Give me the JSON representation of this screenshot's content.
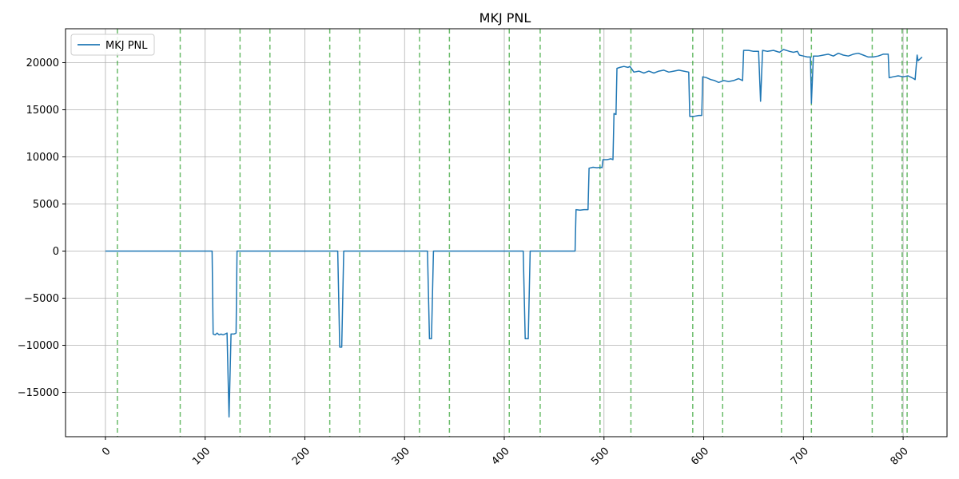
{
  "chart_data": {
    "type": "line",
    "title": "MKJ PNL",
    "xlabel": "",
    "ylabel": "",
    "xlim": [
      -40,
      844
    ],
    "ylim": [
      -19700,
      23600
    ],
    "xticks": [
      0,
      100,
      200,
      300,
      400,
      500,
      600,
      700,
      800
    ],
    "yticks": [
      -15000,
      -10000,
      -5000,
      0,
      5000,
      10000,
      15000,
      20000
    ],
    "grid": true,
    "legend": {
      "position": "top-left",
      "entries": [
        "MKJ PNL"
      ]
    },
    "series": [
      {
        "name": "MKJ PNL",
        "color": "#1f77b4",
        "points": [
          [
            0,
            0
          ],
          [
            12,
            0
          ],
          [
            50,
            0
          ],
          [
            100,
            0
          ],
          [
            107,
            0
          ],
          [
            108,
            -8800
          ],
          [
            110,
            -8900
          ],
          [
            112,
            -8700
          ],
          [
            114,
            -8900
          ],
          [
            116,
            -8800
          ],
          [
            118,
            -8900
          ],
          [
            120,
            -8800
          ],
          [
            122,
            -8700
          ],
          [
            124,
            -17600
          ],
          [
            126,
            -8800
          ],
          [
            129,
            -8800
          ],
          [
            131,
            -8700
          ],
          [
            132,
            0
          ],
          [
            160,
            0
          ],
          [
            200,
            0
          ],
          [
            233,
            0
          ],
          [
            235,
            -10200
          ],
          [
            237,
            -10200
          ],
          [
            239,
            0
          ],
          [
            280,
            0
          ],
          [
            323,
            0
          ],
          [
            325,
            -9300
          ],
          [
            327,
            -9300
          ],
          [
            329,
            0
          ],
          [
            370,
            0
          ],
          [
            419,
            0
          ],
          [
            421,
            -9300
          ],
          [
            424,
            -9300
          ],
          [
            426,
            0
          ],
          [
            460,
            0
          ],
          [
            471,
            0
          ],
          [
            472,
            4400
          ],
          [
            476,
            4350
          ],
          [
            480,
            4400
          ],
          [
            484,
            4400
          ],
          [
            485,
            8800
          ],
          [
            489,
            8900
          ],
          [
            493,
            8850
          ],
          [
            497,
            8900
          ],
          [
            498,
            8850
          ],
          [
            499,
            9700
          ],
          [
            503,
            9700
          ],
          [
            507,
            9800
          ],
          [
            509,
            9700
          ],
          [
            510,
            14600
          ],
          [
            512,
            14500
          ],
          [
            513,
            19400
          ],
          [
            516,
            19500
          ],
          [
            520,
            19600
          ],
          [
            524,
            19500
          ],
          [
            526,
            19600
          ],
          [
            528,
            19300
          ],
          [
            530,
            19000
          ],
          [
            535,
            19100
          ],
          [
            540,
            18900
          ],
          [
            545,
            19100
          ],
          [
            550,
            18900
          ],
          [
            555,
            19100
          ],
          [
            560,
            19200
          ],
          [
            565,
            19000
          ],
          [
            570,
            19100
          ],
          [
            575,
            19200
          ],
          [
            580,
            19100
          ],
          [
            585,
            19000
          ],
          [
            586,
            14300
          ],
          [
            590,
            14300
          ],
          [
            595,
            14400
          ],
          [
            598,
            14400
          ],
          [
            599,
            18500
          ],
          [
            603,
            18400
          ],
          [
            607,
            18200
          ],
          [
            611,
            18100
          ],
          [
            615,
            17900
          ],
          [
            620,
            18100
          ],
          [
            625,
            18000
          ],
          [
            630,
            18100
          ],
          [
            635,
            18300
          ],
          [
            639,
            18100
          ],
          [
            640,
            21300
          ],
          [
            645,
            21300
          ],
          [
            650,
            21200
          ],
          [
            655,
            21200
          ],
          [
            657,
            15900
          ],
          [
            659,
            21300
          ],
          [
            664,
            21200
          ],
          [
            670,
            21300
          ],
          [
            676,
            21100
          ],
          [
            680,
            21400
          ],
          [
            686,
            21200
          ],
          [
            690,
            21100
          ],
          [
            694,
            21200
          ],
          [
            696,
            20800
          ],
          [
            700,
            20700
          ],
          [
            704,
            20600
          ],
          [
            707,
            20600
          ],
          [
            708,
            15700
          ],
          [
            710,
            20700
          ],
          [
            715,
            20700
          ],
          [
            720,
            20800
          ],
          [
            725,
            20900
          ],
          [
            730,
            20700
          ],
          [
            735,
            21000
          ],
          [
            740,
            20800
          ],
          [
            745,
            20700
          ],
          [
            750,
            20900
          ],
          [
            755,
            21000
          ],
          [
            760,
            20800
          ],
          [
            765,
            20600
          ],
          [
            770,
            20600
          ],
          [
            775,
            20700
          ],
          [
            780,
            20900
          ],
          [
            785,
            20900
          ],
          [
            786,
            18400
          ],
          [
            790,
            18500
          ],
          [
            795,
            18600
          ],
          [
            800,
            18500
          ],
          [
            805,
            18600
          ],
          [
            809,
            18400
          ],
          [
            812,
            18200
          ],
          [
            814,
            20800
          ],
          [
            815,
            20200
          ],
          [
            817,
            20400
          ],
          [
            819,
            20600
          ]
        ]
      }
    ],
    "vlines": {
      "color": "#2ca02c",
      "style": "dashed",
      "x": [
        12,
        75,
        135,
        165,
        225,
        255,
        315,
        345,
        405,
        436,
        496,
        527,
        589,
        619,
        678,
        708,
        769,
        799,
        804
      ]
    }
  }
}
